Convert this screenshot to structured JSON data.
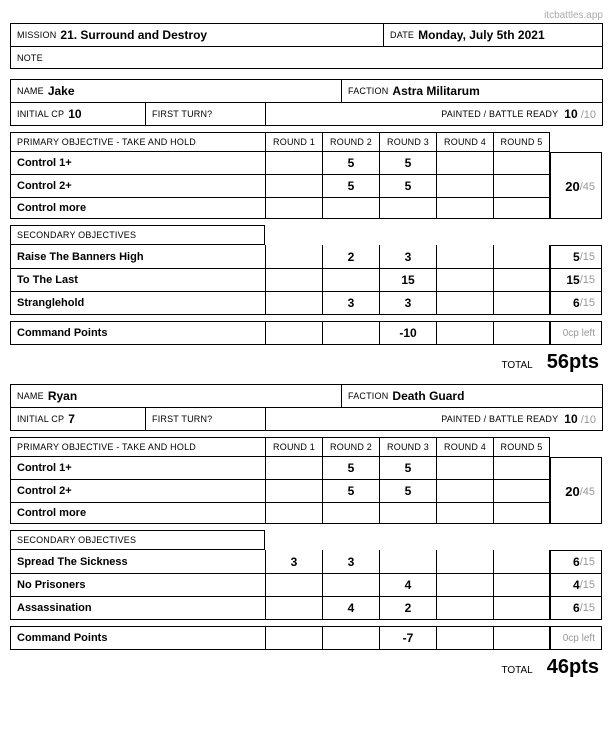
{
  "watermark": "itcbattles.app",
  "header": {
    "mission_label": "MISSION",
    "mission": "21. Surround and Destroy",
    "date_label": "DATE",
    "date": "Monday, July 5th 2021",
    "note_label": "NOTE"
  },
  "labels": {
    "name": "NAME",
    "faction": "FACTION",
    "initial_cp": "INITIAL CP",
    "first_turn": "FIRST TURN?",
    "painted": "PAINTED / BATTLE READY",
    "primary": "PRIMARY OBJECTIVE - TAKE AND HOLD",
    "secondary": "SECONDARY OBJECTIVES",
    "cp_row": "Command Points",
    "total": "TOTAL",
    "r1": "ROUND 1",
    "r2": "ROUND 2",
    "r3": "ROUND 3",
    "r4": "ROUND 4",
    "r5": "ROUND 5",
    "cp_left": "0cp left"
  },
  "players": [
    {
      "name": "Jake",
      "faction": "Astra Militarum",
      "initial_cp": "10",
      "painted_score": "10",
      "painted_max": "/10",
      "primary": [
        {
          "name": "Control 1+",
          "r": [
            "",
            "5",
            "5",
            "",
            ""
          ]
        },
        {
          "name": "Control 2+",
          "r": [
            "",
            "5",
            "5",
            "",
            ""
          ]
        },
        {
          "name": "Control more",
          "r": [
            "",
            "",
            "",
            "",
            ""
          ]
        }
      ],
      "primary_total": "20",
      "primary_max": " /45",
      "secondary": [
        {
          "name": "Raise The Banners High",
          "r": [
            "",
            "2",
            "3",
            "",
            ""
          ],
          "total": "5",
          "max": " /15"
        },
        {
          "name": "To The Last",
          "r": [
            "",
            "",
            "15",
            "",
            ""
          ],
          "total": "15",
          "max": " /15"
        },
        {
          "name": "Stranglehold",
          "r": [
            "",
            "3",
            "3",
            "",
            ""
          ],
          "total": "6",
          "max": " /15"
        }
      ],
      "cp": [
        "",
        "",
        "-10",
        "",
        ""
      ],
      "total": "56pts"
    },
    {
      "name": "Ryan",
      "faction": "Death Guard",
      "initial_cp": "7",
      "painted_score": "10",
      "painted_max": "/10",
      "primary": [
        {
          "name": "Control 1+",
          "r": [
            "",
            "5",
            "5",
            "",
            ""
          ]
        },
        {
          "name": "Control 2+",
          "r": [
            "",
            "5",
            "5",
            "",
            ""
          ]
        },
        {
          "name": "Control more",
          "r": [
            "",
            "",
            "",
            "",
            ""
          ]
        }
      ],
      "primary_total": "20",
      "primary_max": " /45",
      "secondary": [
        {
          "name": "Spread The Sickness",
          "r": [
            "3",
            "3",
            "",
            "",
            ""
          ],
          "total": "6",
          "max": " /15"
        },
        {
          "name": "No Prisoners",
          "r": [
            "",
            "",
            "4",
            "",
            ""
          ],
          "total": "4",
          "max": " /15"
        },
        {
          "name": "Assassination",
          "r": [
            "",
            "4",
            "2",
            "",
            ""
          ],
          "total": "6",
          "max": " /15"
        }
      ],
      "cp": [
        "",
        "",
        "-7",
        "",
        ""
      ],
      "total": "46pts"
    }
  ]
}
